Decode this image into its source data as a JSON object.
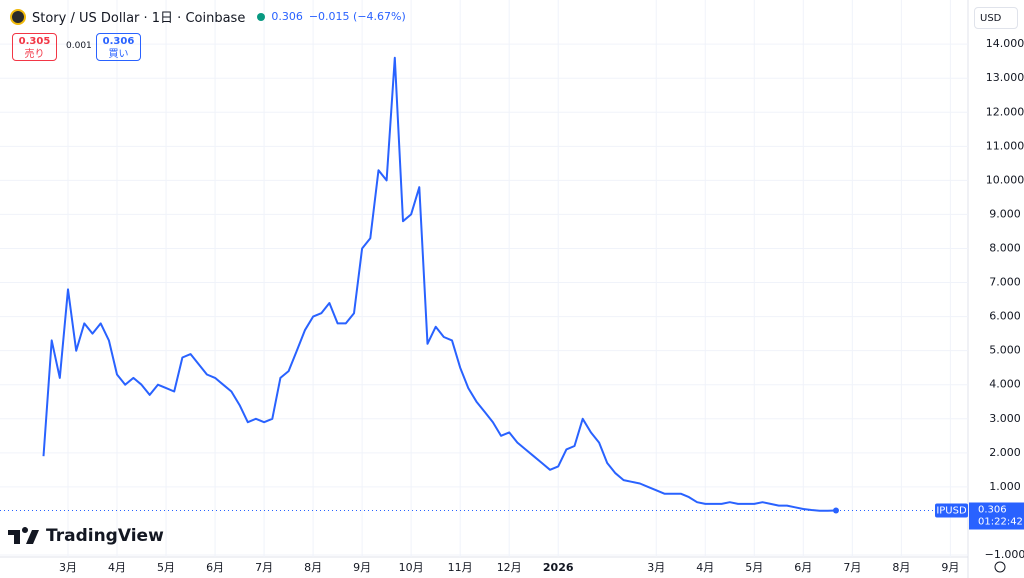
{
  "header": {
    "symbol": "Story / US Dollar · 1日 · Coinbase",
    "last": "0.306",
    "change": "−0.015 (−4.67%)",
    "sell_price": "0.305",
    "sell_label": "売り",
    "spread": "0.001",
    "buy_price": "0.306",
    "buy_label": "買い",
    "currency": "USD",
    "brand": "TradingView",
    "tag_symbol": "IPUSD",
    "tag_price": "0.306",
    "tag_countdown": "01:22:42"
  },
  "chart_data": {
    "type": "line",
    "categories": [
      null,
      null,
      null,
      "3月",
      null,
      null,
      null,
      null,
      null,
      "4月",
      null,
      null,
      null,
      null,
      null,
      "5月",
      null,
      null,
      null,
      null,
      null,
      "6月",
      null,
      null,
      null,
      null,
      null,
      "7月",
      null,
      null,
      null,
      null,
      null,
      "8月",
      null,
      null,
      null,
      null,
      null,
      "9月",
      null,
      null,
      null,
      null,
      null,
      "10月",
      null,
      null,
      null,
      null,
      null,
      "11月",
      null,
      null,
      null,
      null,
      null,
      "12月",
      null,
      null,
      null,
      null,
      null,
      "2026",
      null,
      null,
      null,
      null,
      null,
      null,
      null,
      null,
      null,
      null,
      null,
      "3月",
      null,
      null,
      null,
      null,
      null,
      "4月",
      null,
      null,
      null,
      null,
      null,
      "5月",
      null,
      null,
      null,
      null,
      null,
      "6月",
      null,
      null,
      null,
      null,
      null,
      "7月",
      null,
      null,
      null,
      null,
      null,
      "8月",
      null,
      null,
      null,
      null,
      null,
      "9月"
    ],
    "series": [
      {
        "name": "IPUSD",
        "color": "#2962ff",
        "values": [
          1.9,
          5.3,
          4.2,
          6.8,
          5.0,
          5.8,
          5.5,
          5.8,
          5.3,
          4.3,
          4.0,
          4.2,
          4.0,
          3.7,
          4.0,
          3.9,
          3.8,
          4.8,
          4.9,
          4.6,
          4.3,
          4.2,
          4.0,
          3.8,
          3.4,
          2.9,
          3.0,
          2.9,
          3.0,
          4.2,
          4.4,
          5.0,
          5.6,
          6.0,
          6.1,
          6.4,
          5.8,
          5.8,
          6.1,
          8.0,
          8.3,
          10.3,
          10.0,
          13.6,
          8.8,
          9.0,
          9.8,
          5.2,
          5.7,
          5.4,
          5.3,
          4.5,
          3.9,
          3.5,
          3.2,
          2.9,
          2.5,
          2.6,
          2.3,
          2.1,
          1.9,
          1.7,
          1.5,
          1.6,
          2.1,
          2.2,
          3.0,
          2.6,
          2.3,
          1.7,
          1.4,
          1.2,
          1.15,
          1.1,
          1.0,
          0.9,
          0.8,
          0.8,
          0.8,
          0.7,
          0.55,
          0.5,
          0.5,
          0.5,
          0.55,
          0.5,
          0.5,
          0.5,
          0.55,
          0.5,
          0.45,
          0.45,
          0.4,
          0.35,
          0.32,
          0.3,
          0.3,
          0.306,
          null,
          null,
          null,
          null,
          null,
          null,
          null,
          null,
          null,
          null,
          null,
          null,
          null,
          null
        ]
      }
    ],
    "ylim": [
      -1.03,
      15.15
    ],
    "yticks": [
      {
        "value": -1,
        "label": "−1.000"
      },
      {
        "value": 1,
        "label": "1.000"
      },
      {
        "value": 2,
        "label": "2.000"
      },
      {
        "value": 3,
        "label": "3.000"
      },
      {
        "value": 4,
        "label": "4.000"
      },
      {
        "value": 5,
        "label": "5.000"
      },
      {
        "value": 6,
        "label": "6.000"
      },
      {
        "value": 7,
        "label": "7.000"
      },
      {
        "value": 8,
        "label": "8.000"
      },
      {
        "value": 9,
        "label": "9.000"
      },
      {
        "value": 10,
        "label": "10.000"
      },
      {
        "value": 11,
        "label": "11.000"
      },
      {
        "value": 12,
        "label": "12.000"
      },
      {
        "value": 13,
        "label": "13.000"
      },
      {
        "value": 14,
        "label": "14.000"
      }
    ],
    "grid": true
  }
}
